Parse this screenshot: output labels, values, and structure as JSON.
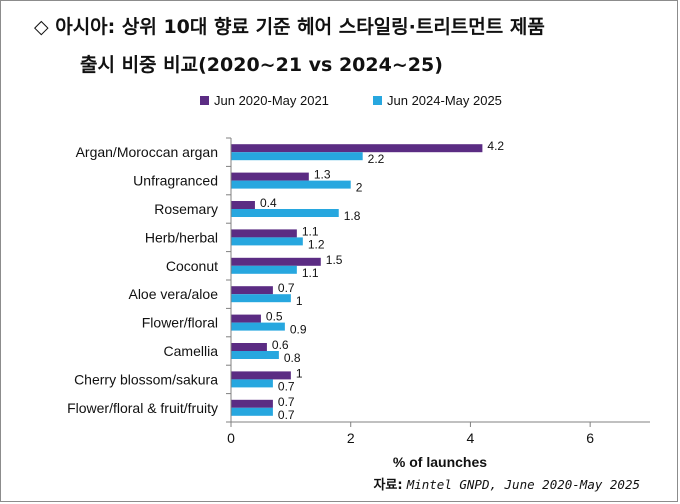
{
  "title_line1": "◇ 아시아: 상위 10대 향료 기준 헤어 스타일링·트리트먼트 제품",
  "title_line2": "출시 비중 비교(2020~21 vs 2024~25)",
  "source_label": "자료:",
  "source_text": "Mintel GNPD, June 2020-May 2025",
  "colors": {
    "series1": "#5b2c83",
    "series2": "#27a7df",
    "axis": "#808080"
  },
  "chart_data": {
    "type": "bar",
    "orientation": "horizontal",
    "categories": [
      "Argan/Moroccan argan",
      "Unfragranced",
      "Rosemary",
      "Herb/herbal",
      "Coconut",
      "Aloe vera/aloe",
      "Flower/floral",
      "Camellia",
      "Cherry blossom/sakura",
      "Flower/floral & fruit/fruity"
    ],
    "series": [
      {
        "name": "Jun 2020-May 2021",
        "values": [
          4.2,
          1.3,
          0.4,
          1.1,
          1.5,
          0.7,
          0.5,
          0.6,
          1,
          0.7
        ]
      },
      {
        "name": "Jun 2024-May 2025",
        "values": [
          2.2,
          2,
          1.8,
          1.2,
          1.1,
          1,
          0.9,
          0.8,
          0.7,
          0.7
        ]
      }
    ],
    "xlabel": "% of launches",
    "xlim": [
      0,
      7
    ],
    "xticks": [
      0,
      2,
      4,
      6
    ],
    "legend_position": "top",
    "grid": false
  }
}
